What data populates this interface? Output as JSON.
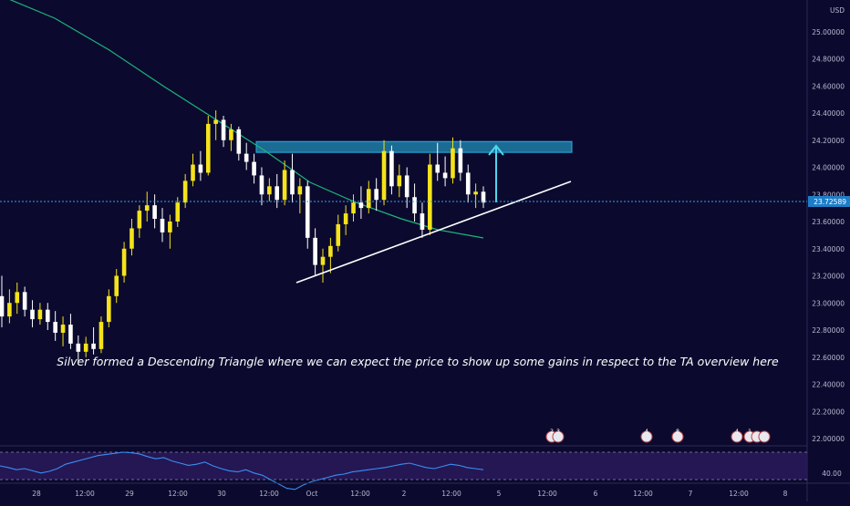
{
  "chart_data": {
    "type": "candlestick",
    "symbol_currency": "USD",
    "current_price": "23.72589",
    "annotation": "Silver formed a Descending Triangle where we can expect the price to show up some gains in respect to the TA overview here",
    "y_range": [
      21.9,
      25.25
    ],
    "y_ticks": [
      "22.00000",
      "22.20000",
      "22.40000",
      "22.60000",
      "22.80000",
      "23.00000",
      "23.20000",
      "23.40000",
      "23.60000",
      "23.80000",
      "24.00000",
      "24.20000",
      "24.40000",
      "24.60000",
      "24.80000",
      "25.00000",
      "25.20000"
    ],
    "x_ticks": [
      "28",
      "12:00",
      "29",
      "12:00",
      "30",
      "12:00",
      "Oct",
      "12:00",
      "2",
      "12:00",
      "5",
      "12:00",
      "6",
      "12:00",
      "7",
      "12:00",
      "8"
    ],
    "candles": [
      {
        "o": 23.05,
        "h": 23.2,
        "l": 22.82,
        "c": 22.9
      },
      {
        "o": 22.9,
        "h": 23.1,
        "l": 22.85,
        "c": 23.0
      },
      {
        "o": 23.0,
        "h": 23.15,
        "l": 22.92,
        "c": 23.08
      },
      {
        "o": 23.08,
        "h": 23.12,
        "l": 22.9,
        "c": 22.95
      },
      {
        "o": 22.95,
        "h": 23.02,
        "l": 22.82,
        "c": 22.88
      },
      {
        "o": 22.88,
        "h": 23.0,
        "l": 22.84,
        "c": 22.95
      },
      {
        "o": 22.95,
        "h": 23.0,
        "l": 22.8,
        "c": 22.86
      },
      {
        "o": 22.86,
        "h": 22.94,
        "l": 22.72,
        "c": 22.78
      },
      {
        "o": 22.78,
        "h": 22.9,
        "l": 22.68,
        "c": 22.84
      },
      {
        "o": 22.84,
        "h": 22.92,
        "l": 22.66,
        "c": 22.7
      },
      {
        "o": 22.7,
        "h": 22.76,
        "l": 22.55,
        "c": 22.64
      },
      {
        "o": 22.64,
        "h": 22.75,
        "l": 22.6,
        "c": 22.7
      },
      {
        "o": 22.7,
        "h": 22.82,
        "l": 22.62,
        "c": 22.66
      },
      {
        "o": 22.66,
        "h": 22.9,
        "l": 22.63,
        "c": 22.86
      },
      {
        "o": 22.86,
        "h": 23.1,
        "l": 22.82,
        "c": 23.05
      },
      {
        "o": 23.05,
        "h": 23.25,
        "l": 23.0,
        "c": 23.2
      },
      {
        "o": 23.2,
        "h": 23.45,
        "l": 23.15,
        "c": 23.4
      },
      {
        "o": 23.4,
        "h": 23.62,
        "l": 23.35,
        "c": 23.55
      },
      {
        "o": 23.55,
        "h": 23.72,
        "l": 23.48,
        "c": 23.68
      },
      {
        "o": 23.68,
        "h": 23.82,
        "l": 23.6,
        "c": 23.72
      },
      {
        "o": 23.72,
        "h": 23.8,
        "l": 23.55,
        "c": 23.62
      },
      {
        "o": 23.62,
        "h": 23.7,
        "l": 23.45,
        "c": 23.52
      },
      {
        "o": 23.52,
        "h": 23.65,
        "l": 23.4,
        "c": 23.6
      },
      {
        "o": 23.6,
        "h": 23.78,
        "l": 23.56,
        "c": 23.74
      },
      {
        "o": 23.74,
        "h": 23.95,
        "l": 23.7,
        "c": 23.9
      },
      {
        "o": 23.9,
        "h": 24.1,
        "l": 23.86,
        "c": 24.02
      },
      {
        "o": 24.02,
        "h": 24.12,
        "l": 23.9,
        "c": 23.96
      },
      {
        "o": 23.96,
        "h": 24.38,
        "l": 23.94,
        "c": 24.32
      },
      {
        "o": 24.32,
        "h": 24.42,
        "l": 24.2,
        "c": 24.35
      },
      {
        "o": 24.35,
        "h": 24.38,
        "l": 24.15,
        "c": 24.2
      },
      {
        "o": 24.2,
        "h": 24.32,
        "l": 24.12,
        "c": 24.28
      },
      {
        "o": 24.28,
        "h": 24.3,
        "l": 24.05,
        "c": 24.1
      },
      {
        "o": 24.1,
        "h": 24.18,
        "l": 23.98,
        "c": 24.04
      },
      {
        "o": 24.04,
        "h": 24.1,
        "l": 23.88,
        "c": 23.94
      },
      {
        "o": 23.94,
        "h": 24.0,
        "l": 23.72,
        "c": 23.8
      },
      {
        "o": 23.8,
        "h": 23.92,
        "l": 23.75,
        "c": 23.86
      },
      {
        "o": 23.86,
        "h": 23.95,
        "l": 23.7,
        "c": 23.76
      },
      {
        "o": 23.76,
        "h": 24.05,
        "l": 23.72,
        "c": 23.98
      },
      {
        "o": 23.98,
        "h": 24.1,
        "l": 23.74,
        "c": 23.8
      },
      {
        "o": 23.8,
        "h": 23.92,
        "l": 23.66,
        "c": 23.86
      },
      {
        "o": 23.86,
        "h": 23.9,
        "l": 23.4,
        "c": 23.48
      },
      {
        "o": 23.48,
        "h": 23.55,
        "l": 23.2,
        "c": 23.28
      },
      {
        "o": 23.28,
        "h": 23.4,
        "l": 23.15,
        "c": 23.34
      },
      {
        "o": 23.34,
        "h": 23.48,
        "l": 23.22,
        "c": 23.42
      },
      {
        "o": 23.42,
        "h": 23.65,
        "l": 23.38,
        "c": 23.58
      },
      {
        "o": 23.58,
        "h": 23.72,
        "l": 23.5,
        "c": 23.66
      },
      {
        "o": 23.66,
        "h": 23.8,
        "l": 23.6,
        "c": 23.74
      },
      {
        "o": 23.74,
        "h": 23.86,
        "l": 23.62,
        "c": 23.7
      },
      {
        "o": 23.7,
        "h": 23.9,
        "l": 23.66,
        "c": 23.84
      },
      {
        "o": 23.84,
        "h": 23.92,
        "l": 23.68,
        "c": 23.76
      },
      {
        "o": 23.76,
        "h": 24.2,
        "l": 23.72,
        "c": 24.12
      },
      {
        "o": 24.12,
        "h": 24.16,
        "l": 23.8,
        "c": 23.86
      },
      {
        "o": 23.86,
        "h": 24.02,
        "l": 23.78,
        "c": 23.94
      },
      {
        "o": 23.94,
        "h": 24.0,
        "l": 23.7,
        "c": 23.78
      },
      {
        "o": 23.78,
        "h": 23.88,
        "l": 23.6,
        "c": 23.66
      },
      {
        "o": 23.66,
        "h": 23.74,
        "l": 23.48,
        "c": 23.54
      },
      {
        "o": 23.54,
        "h": 24.1,
        "l": 23.5,
        "c": 24.02
      },
      {
        "o": 24.02,
        "h": 24.18,
        "l": 23.9,
        "c": 23.96
      },
      {
        "o": 23.96,
        "h": 24.08,
        "l": 23.86,
        "c": 23.92
      },
      {
        "o": 23.92,
        "h": 24.22,
        "l": 23.88,
        "c": 24.14
      },
      {
        "o": 24.14,
        "h": 24.2,
        "l": 23.9,
        "c": 23.96
      },
      {
        "o": 23.96,
        "h": 24.02,
        "l": 23.74,
        "c": 23.8
      },
      {
        "o": 23.8,
        "h": 23.88,
        "l": 23.7,
        "c": 23.82
      },
      {
        "o": 23.82,
        "h": 23.86,
        "l": 23.7,
        "c": 23.74
      }
    ],
    "moving_average": [
      {
        "t": 0,
        "v": 25.3
      },
      {
        "t": 14,
        "v": 24.95
      },
      {
        "t": 26,
        "v": 24.55
      },
      {
        "t": 34,
        "v": 24.22
      },
      {
        "t": 42,
        "v": 23.95
      },
      {
        "t": 52,
        "v": 23.65
      },
      {
        "t": 58,
        "v": 23.5
      },
      {
        "t": 66,
        "v": 23.45
      }
    ],
    "resistance_zone": {
      "t_start": 34,
      "t_end": 80,
      "price_low": 24.11,
      "price_high": 24.19
    },
    "support_trendline": {
      "t1": 41,
      "p1": 23.14,
      "t2": 80,
      "p2": 23.89
    },
    "target_arrow": {
      "t": 67,
      "p_from": 23.72,
      "p_to": 24.14
    },
    "rsi": {
      "label": "40.00",
      "values": [
        55,
        52,
        48,
        50,
        46,
        42,
        45,
        50,
        58,
        62,
        66,
        70,
        74,
        76,
        78,
        80,
        79,
        77,
        72,
        68,
        70,
        64,
        60,
        56,
        58,
        62,
        55,
        50,
        46,
        44,
        48,
        42,
        38,
        30,
        22,
        14,
        12,
        20,
        26,
        30,
        34,
        38,
        40,
        44,
        46,
        48,
        50,
        52,
        55,
        58,
        60,
        56,
        52,
        50,
        54,
        58,
        56,
        52,
        50,
        48
      ]
    },
    "event_badges": [
      "2",
      "3",
      "4",
      "8",
      "4",
      "1"
    ]
  }
}
